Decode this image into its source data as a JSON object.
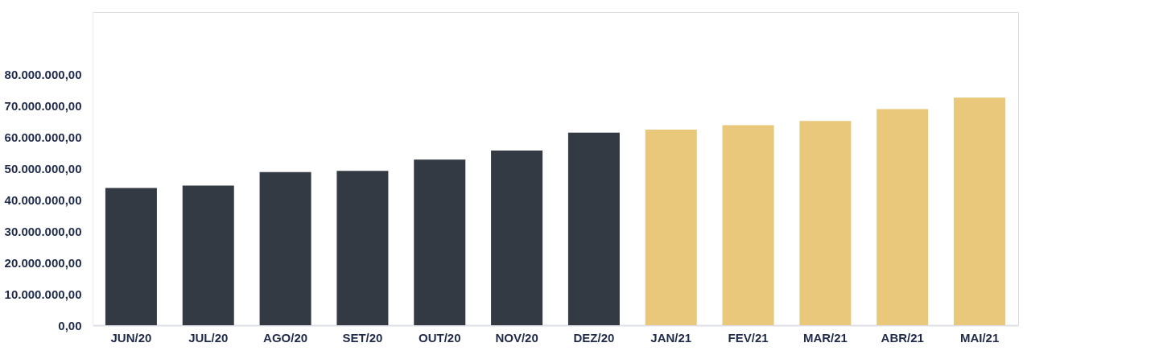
{
  "chart_data": {
    "type": "bar",
    "categories": [
      "JUN/20",
      "JUL/20",
      "AGO/20",
      "SET/20",
      "OUT/20",
      "NOV/20",
      "DEZ/20",
      "JAN/21",
      "FEV/21",
      "MAR/21",
      "ABR/21",
      "MAI/21"
    ],
    "values": [
      43800000,
      44600000,
      48900000,
      49300000,
      52900000,
      55800000,
      61500000,
      62500000,
      63900000,
      65200000,
      69000000,
      72700000
    ],
    "colors": [
      "#343a43",
      "#343a43",
      "#343a43",
      "#343a43",
      "#343a43",
      "#343a43",
      "#343a43",
      "#e9c77b",
      "#e9c77b",
      "#e9c77b",
      "#e9c77b",
      "#e9c77b"
    ],
    "ylim": [
      0,
      100000000
    ],
    "yticks": [
      {
        "value": 0,
        "label": "0,00"
      },
      {
        "value": 10000000,
        "label": "10.000.000,00"
      },
      {
        "value": 20000000,
        "label": "20.000.000,00"
      },
      {
        "value": 30000000,
        "label": "30.000.000,00"
      },
      {
        "value": 40000000,
        "label": "40.000.000,00"
      },
      {
        "value": 50000000,
        "label": "50.000.000,00"
      },
      {
        "value": 60000000,
        "label": "60.000.000,00"
      },
      {
        "value": 70000000,
        "label": "70.000.000,00"
      },
      {
        "value": 80000000,
        "label": "80.000.000,00"
      }
    ],
    "grid": false
  }
}
